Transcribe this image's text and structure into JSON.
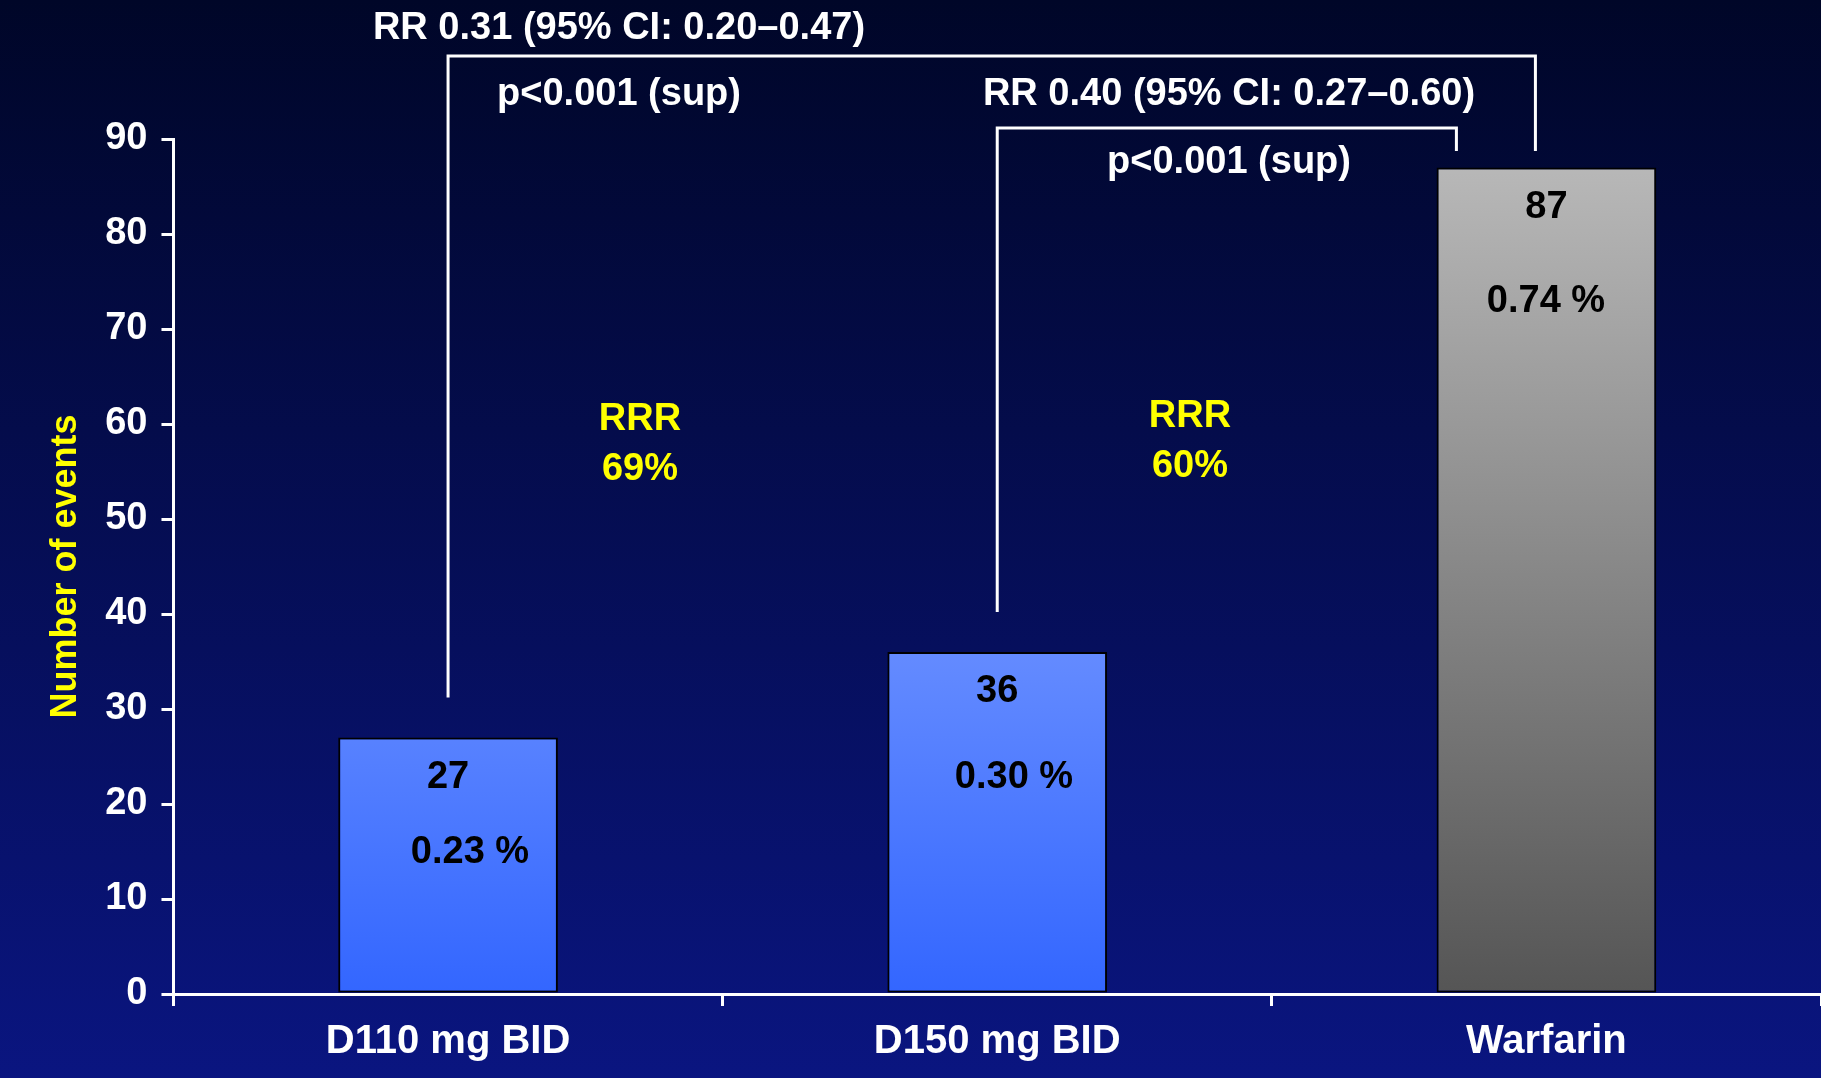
{
  "chart_data": {
    "type": "bar",
    "ylabel": "Number of events",
    "categories": [
      "D110 mg BID",
      "D150 mg BID",
      "Warfarin"
    ],
    "values": [
      27,
      36,
      87
    ],
    "colors": [
      "#3366ff",
      "#3366ff",
      "#555555"
    ],
    "ylim": [
      0,
      90
    ],
    "yticks": [
      0,
      10,
      20,
      30,
      40,
      50,
      60,
      70,
      80,
      90
    ],
    "grid": false,
    "legend": false,
    "data_labels": true,
    "annotations": [
      "RR 0.31 (95% CI: 0.20–0.47)",
      "p<0.001 (sup)",
      "RR 0.40 (95% CI: 0.27–0.60)",
      "p<0.001 (sup)",
      "RRR\n69%",
      "RRR\n60%",
      "0.23 %",
      "0.30 %",
      "0.74 %"
    ]
  }
}
